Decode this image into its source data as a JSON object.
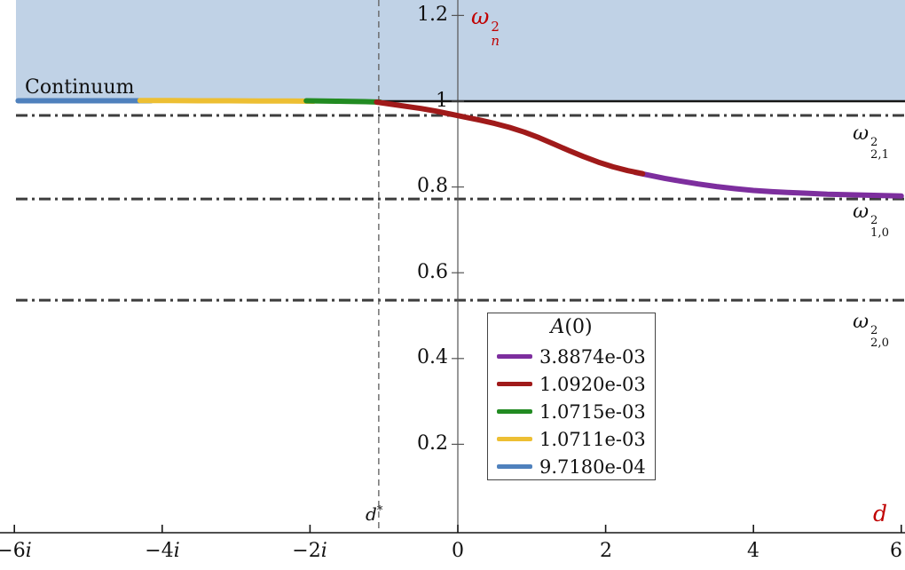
{
  "labels": {
    "continuum": "Continuum",
    "y_axis": {
      "base": "ω",
      "sup": "2",
      "sub": "n"
    },
    "x_axis": "d",
    "dstar": {
      "base": "d",
      "sup": "*"
    },
    "accent_color": "#c00000"
  },
  "chart_data": {
    "type": "line",
    "xlim": [
      -6,
      6
    ],
    "ylim": [
      0,
      1.25
    ],
    "x_ticks": [
      {
        "value": -6,
        "num": "−6",
        "ital": "i"
      },
      {
        "value": -4,
        "num": "−4",
        "ital": "i"
      },
      {
        "value": -2,
        "num": "−2",
        "ital": "i"
      },
      {
        "value": 0,
        "num": "0",
        "ital": ""
      },
      {
        "value": 2,
        "num": "2",
        "ital": ""
      },
      {
        "value": 4,
        "num": "4",
        "ital": ""
      },
      {
        "value": 6,
        "num": "6",
        "ital": ""
      }
    ],
    "y_ticks": [
      {
        "value": 0.2,
        "label": "0.2"
      },
      {
        "value": 0.4,
        "label": "0.4"
      },
      {
        "value": 0.6,
        "label": "0.6"
      },
      {
        "value": 0.8,
        "label": "0.8"
      },
      {
        "value": 1,
        "label": "1"
      },
      {
        "value": 1.2,
        "label": "1.2"
      }
    ],
    "continuum_region": {
      "y_min": 1.0,
      "fill": "#c0d2e6",
      "label": "Continuum"
    },
    "boundary_line": {
      "y": 1.0,
      "color": "#161616"
    },
    "reference_lines": [
      {
        "y": 0.967,
        "color": "#3d3d3d",
        "label_parts": {
          "base": "ω",
          "sup": "2",
          "sub": "2,1"
        }
      },
      {
        "y": 0.772,
        "color": "#3d3d3d",
        "label_parts": {
          "base": "ω",
          "sup": "2",
          "sub": "1,0"
        }
      },
      {
        "y": 0.536,
        "color": "#3d3d3d",
        "label_parts": {
          "base": "ω",
          "sup": "2",
          "sub": "2,0"
        }
      }
    ],
    "dashed_vline": {
      "x": -1.07
    },
    "legend": {
      "title": {
        "ital": "A",
        "rest": "(0)"
      },
      "entries": [
        {
          "label": "3.8874e-03",
          "color": "#7d2e9e"
        },
        {
          "label": "1.0920e-03",
          "color": "#a01a1a"
        },
        {
          "label": "1.0715e-03",
          "color": "#228b22"
        },
        {
          "label": "1.0711e-03",
          "color": "#edbf33"
        },
        {
          "label": "9.7180e-04",
          "color": "#4f81bd"
        }
      ]
    },
    "series": [
      {
        "name": "3.8874e-03",
        "x": [
          2.4,
          2.6,
          2.8,
          3.0,
          3.25,
          3.5,
          3.75,
          4.0,
          4.25,
          4.5,
          4.75,
          5.0,
          5.25,
          5.5,
          5.75,
          6.0
        ],
        "y": [
          0.834,
          0.827,
          0.82,
          0.814,
          0.807,
          0.801,
          0.796,
          0.792,
          0.789,
          0.787,
          0.785,
          0.783,
          0.782,
          0.781,
          0.78,
          0.779
        ]
      },
      {
        "name": "1.0920e-03",
        "x": [
          -1.1,
          -0.9,
          -0.7,
          -0.5,
          -0.3,
          -0.1,
          0.1,
          0.3,
          0.5,
          0.7,
          0.9,
          1.1,
          1.3,
          1.5,
          1.7,
          1.9,
          2.1,
          2.3,
          2.5
        ],
        "y": [
          0.998,
          0.993,
          0.988,
          0.983,
          0.977,
          0.97,
          0.963,
          0.956,
          0.948,
          0.939,
          0.928,
          0.915,
          0.9,
          0.885,
          0.871,
          0.858,
          0.847,
          0.838,
          0.831
        ]
      },
      {
        "name": "1.0715e-03",
        "x": [
          -2.05,
          -1.85,
          -1.65,
          -1.45,
          -1.25,
          -1.05
        ],
        "y": [
          1.001,
          1.0005,
          1.0,
          0.9995,
          0.999,
          0.998
        ]
      },
      {
        "name": "1.0711e-03",
        "x": [
          -4.3,
          -3.9,
          -3.5,
          -3.1,
          -2.7,
          -2.3,
          -1.95
        ],
        "y": [
          1.0015,
          1.0015,
          1.001,
          1.001,
          1.0005,
          1.0005,
          1.0
        ]
      },
      {
        "name": "9.7180e-04",
        "x": [
          -5.95,
          -5.5,
          -5.0,
          -4.6,
          -4.15
        ],
        "y": [
          1.001,
          1.001,
          1.001,
          1.001,
          1.001
        ]
      }
    ]
  }
}
